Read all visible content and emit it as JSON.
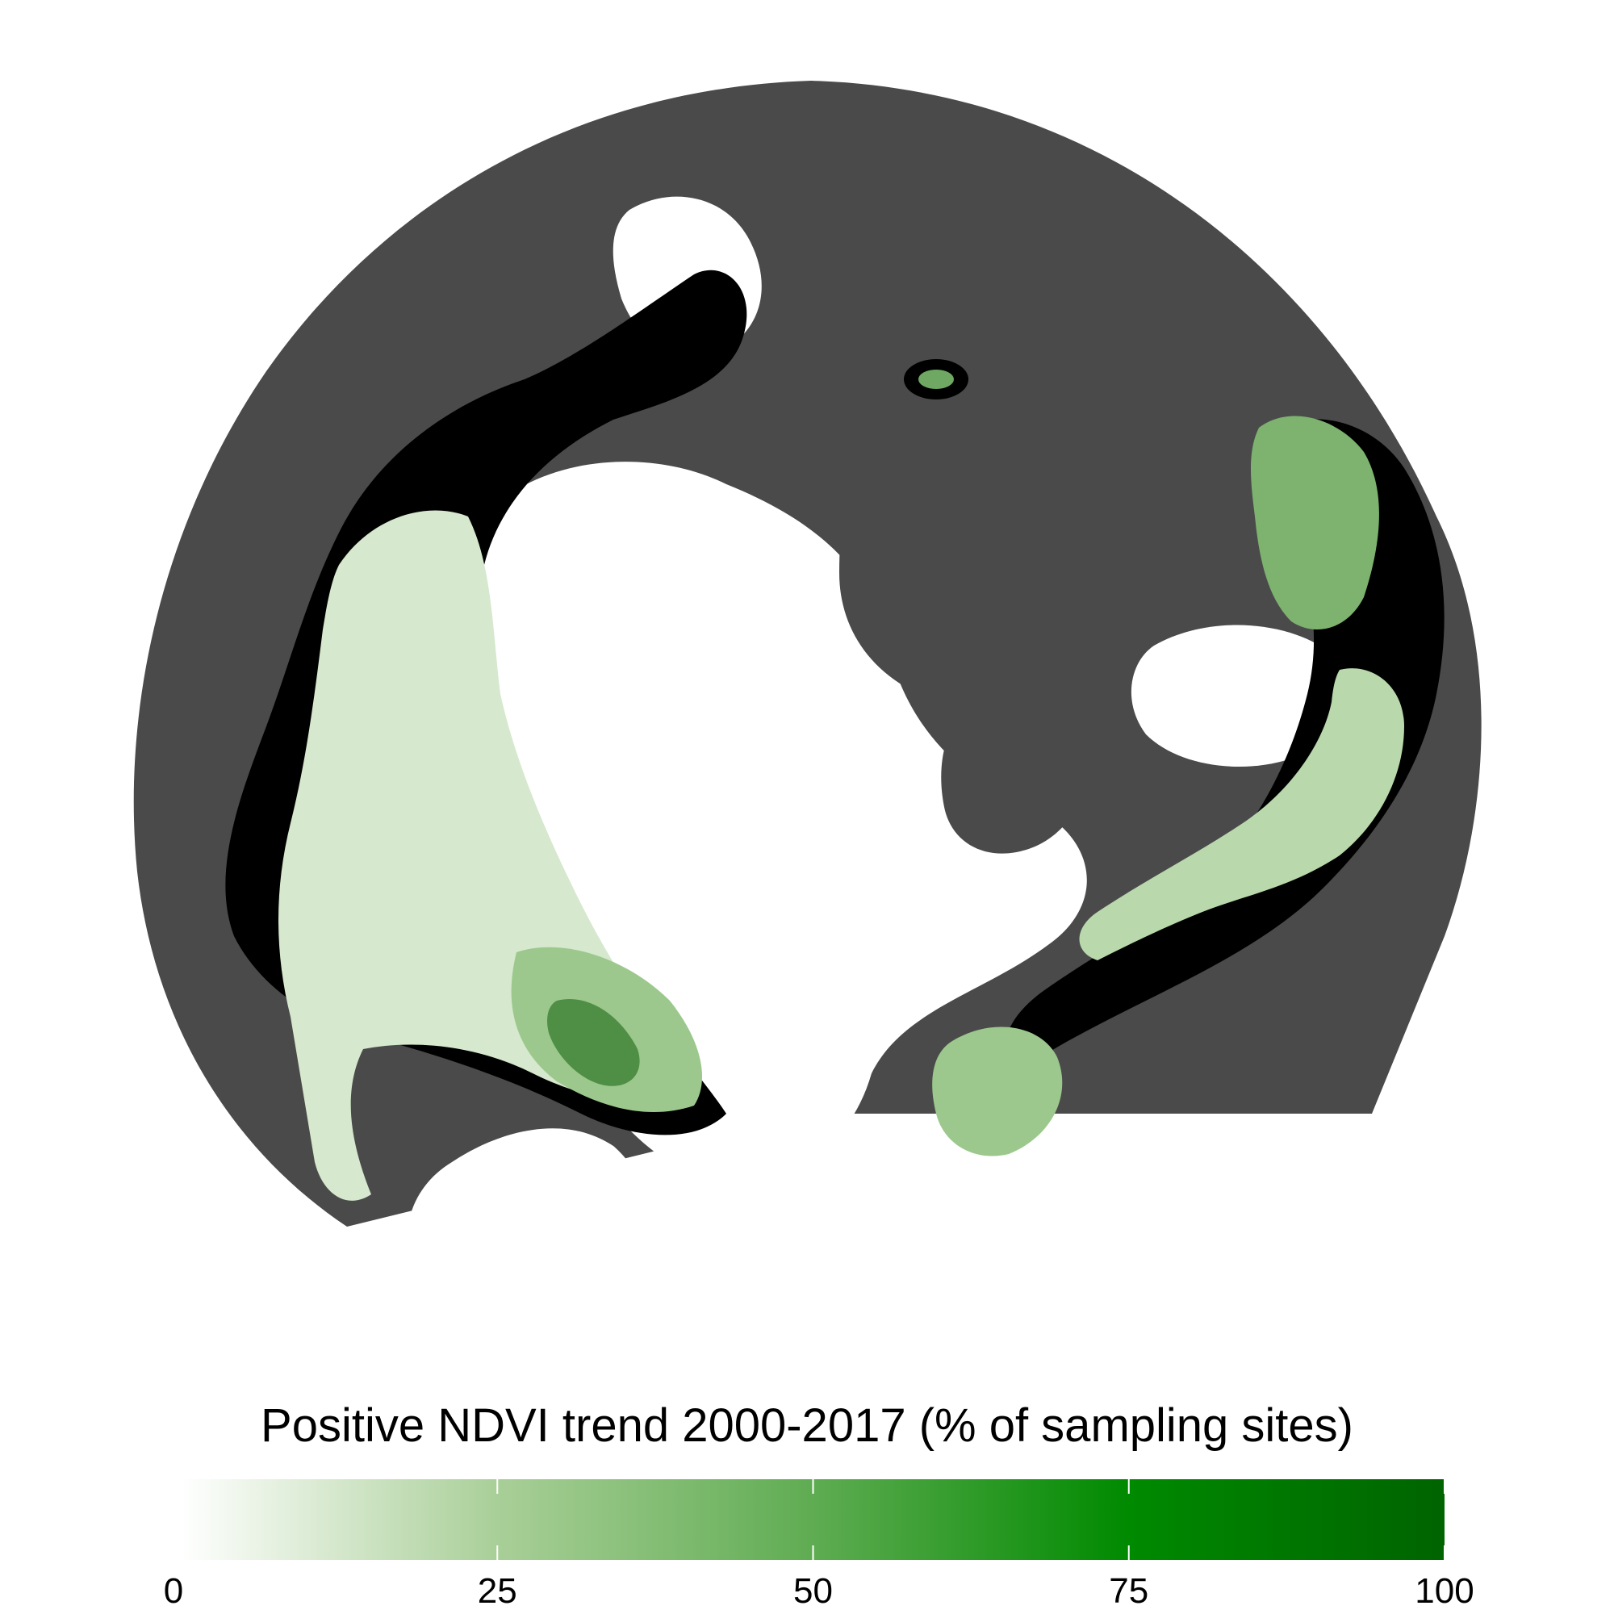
{
  "legend": {
    "title": "Positive NDVI trend 2000-2017 (% of sampling sites)",
    "scale_min": 0,
    "scale_max": 100,
    "ticks": [
      "0",
      "25",
      "50",
      "75",
      "100"
    ],
    "gradient_colors": [
      "#ffffff",
      "#a9cf98",
      "#5fac52",
      "#008a00",
      "#006400"
    ]
  },
  "map": {
    "projection": "polar",
    "colors": {
      "ocean_or_outside_study": "#4a4a4a",
      "no_data_land": "#000000",
      "ice_or_unvegetated": "#ffffff",
      "low_trend": "#e4f0df",
      "mid_trend": "#b9d9ad",
      "high_trend": "#5d9e52"
    }
  }
}
